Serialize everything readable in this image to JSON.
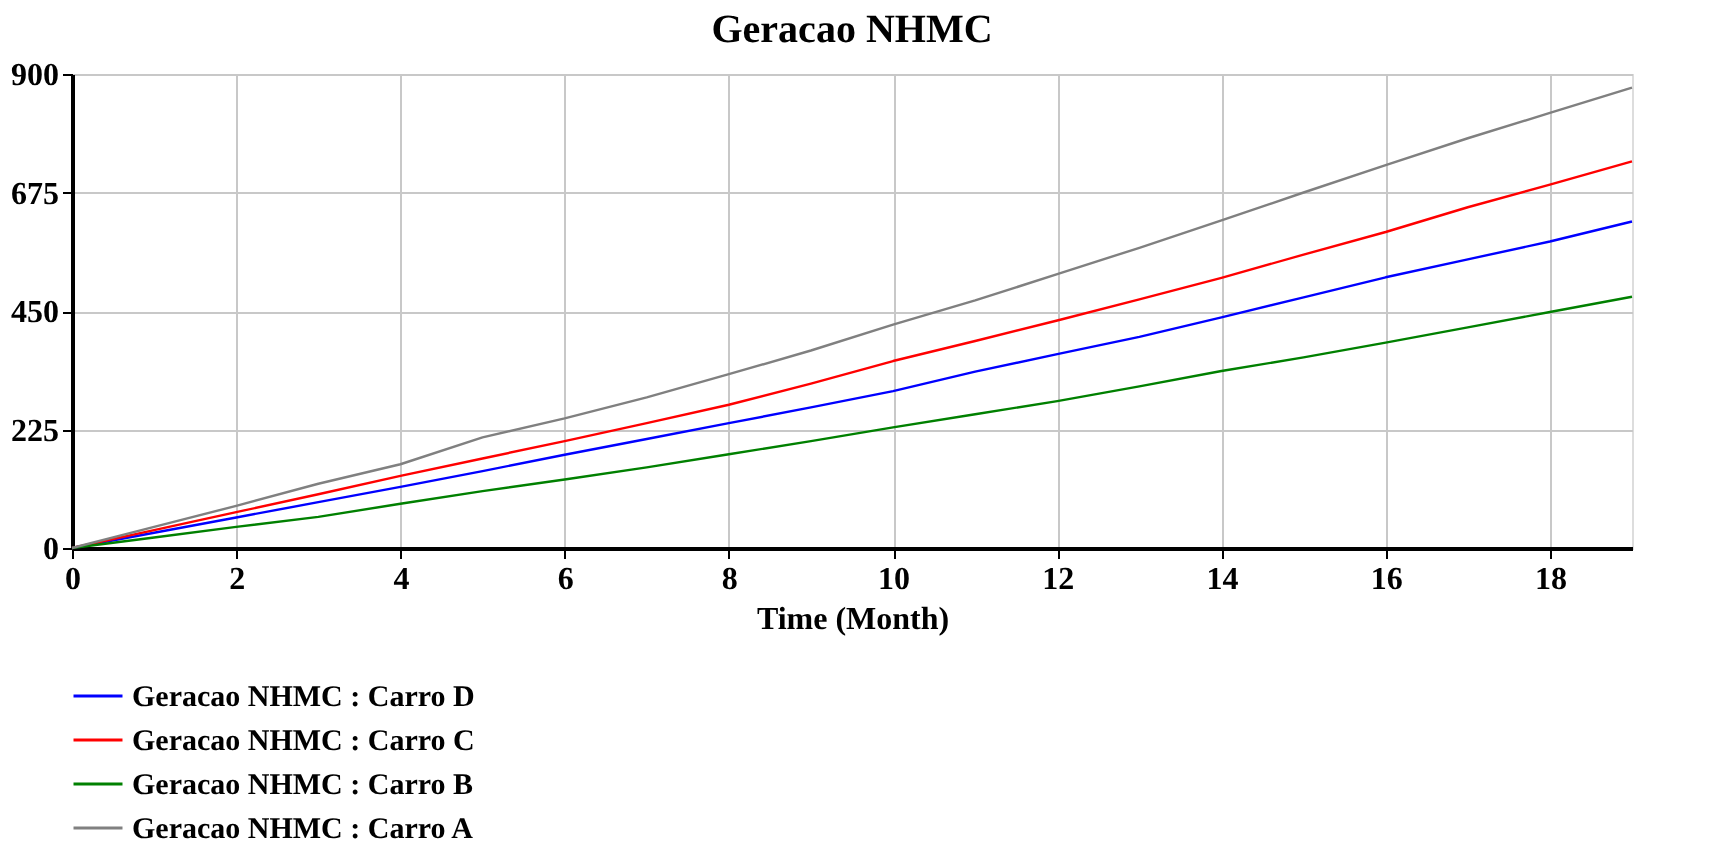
{
  "chart_data": {
    "type": "line",
    "title": "Geracao NHMC",
    "xlabel": "Time (Month)",
    "x": [
      0,
      1,
      2,
      3,
      4,
      5,
      6,
      7,
      8,
      9,
      10,
      11,
      12,
      13,
      14,
      15,
      16,
      17,
      18,
      19
    ],
    "series": [
      {
        "name": "Geracao NHMC : Carro D",
        "color": "#0000ff",
        "values": [
          0,
          29,
          58,
          87,
          116,
          146,
          177,
          207,
          237,
          267,
          298,
          335,
          368,
          401,
          438,
          476,
          514,
          548,
          582,
          620
        ]
      },
      {
        "name": "Geracao NHMC : Carro C",
        "color": "#ff0000",
        "values": [
          0,
          34,
          68,
          102,
          137,
          170,
          203,
          237,
          272,
          312,
          355,
          393,
          432,
          472,
          513,
          557,
          600,
          647,
          690,
          734
        ]
      },
      {
        "name": "Geracao NHMC : Carro B",
        "color": "#008000",
        "values": [
          0,
          20,
          40,
          59,
          84,
          108,
          130,
          153,
          178,
          203,
          229,
          254,
          279,
          307,
          336,
          362,
          390,
          419,
          448,
          477
        ]
      },
      {
        "name": "Geracao NHMC : Carro A",
        "color": "#808080",
        "values": [
          0,
          40,
          80,
          122,
          159,
          210,
          246,
          286,
          330,
          375,
          424,
          470,
          520,
          570,
          622,
          675,
          727,
          778,
          826,
          874
        ]
      }
    ],
    "xlim": [
      0,
      19
    ],
    "xticks": [
      0,
      2,
      4,
      6,
      8,
      10,
      12,
      14,
      16,
      18
    ],
    "ylim": [
      0,
      900
    ],
    "yticks": [
      0,
      225,
      450,
      675,
      900
    ],
    "grid": true,
    "legend": "bottom",
    "line_style": "solid"
  }
}
